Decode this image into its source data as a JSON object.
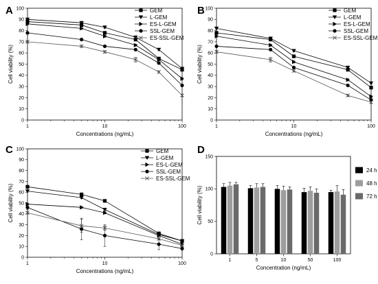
{
  "chart_data": [
    {
      "panel": "A",
      "type": "line",
      "xscale": "log",
      "xlabel": "Concentrations (ng/mL)",
      "ylabel": "Cell viability (%)",
      "xlim": [
        1,
        100
      ],
      "ylim": [
        0,
        100
      ],
      "x_ticks": [
        1,
        10,
        100
      ],
      "y_ticks": [
        0,
        10,
        20,
        30,
        40,
        50,
        60,
        70,
        80,
        90,
        100
      ],
      "x": [
        1,
        5,
        10,
        25,
        50,
        100
      ],
      "legend_position": "top-right",
      "series": [
        {
          "name": "GEM",
          "marker": "square",
          "values": [
            88,
            85,
            78,
            72,
            55,
            45
          ],
          "errors": [
            1,
            1,
            1,
            1,
            1,
            1
          ]
        },
        {
          "name": "L-GEM",
          "marker": "triangle-down",
          "values": [
            90,
            87,
            83,
            74,
            63,
            46
          ],
          "errors": [
            1,
            1,
            1,
            1,
            1,
            1
          ]
        },
        {
          "name": "ES-L-GEM",
          "marker": "triangle-right",
          "values": [
            86,
            82,
            75,
            67,
            54,
            37
          ],
          "errors": [
            1,
            1,
            1,
            1,
            1,
            1
          ]
        },
        {
          "name": "SSL-GEM",
          "marker": "circle",
          "values": [
            78,
            72,
            66,
            63,
            51,
            31
          ],
          "errors": [
            1,
            1,
            1,
            1,
            1,
            1
          ]
        },
        {
          "name": "ES-SSL-GEM",
          "marker": "cross",
          "values": [
            70,
            66,
            61,
            54,
            43,
            22
          ],
          "errors": [
            1,
            1,
            1,
            2,
            1,
            1
          ]
        }
      ]
    },
    {
      "panel": "B",
      "type": "line",
      "xscale": "log",
      "xlabel": "Concentrations (ng/mL)",
      "ylabel": "Cell viability (%)",
      "xlim": [
        1,
        100
      ],
      "ylim": [
        0,
        100
      ],
      "x_ticks": [
        1,
        10,
        100
      ],
      "y_ticks": [
        0,
        10,
        20,
        30,
        40,
        50,
        60,
        70,
        80,
        90,
        100
      ],
      "x": [
        1,
        5,
        10,
        50,
        100
      ],
      "legend_position": "top-right",
      "series": [
        {
          "name": "GEM",
          "marker": "square",
          "values": [
            78,
            72,
            57,
            45,
            29
          ],
          "errors": [
            1,
            1,
            1,
            1,
            1
          ]
        },
        {
          "name": "L-GEM",
          "marker": "triangle-down",
          "values": [
            82,
            73,
            62,
            47,
            33
          ],
          "errors": [
            1,
            1,
            1,
            1,
            1
          ]
        },
        {
          "name": "ES-L-GEM",
          "marker": "triangle-right",
          "values": [
            75,
            67,
            52,
            36,
            21
          ],
          "errors": [
            1,
            1,
            1,
            1,
            1
          ]
        },
        {
          "name": "SSL-GEM",
          "marker": "circle",
          "values": [
            66,
            63,
            47,
            31,
            18
          ],
          "errors": [
            1,
            1,
            1,
            1,
            1
          ]
        },
        {
          "name": "ES-SSL-GEM",
          "marker": "cross",
          "values": [
            61,
            54,
            44,
            22,
            16
          ],
          "errors": [
            1,
            2,
            1,
            1,
            1
          ]
        }
      ]
    },
    {
      "panel": "C",
      "type": "line",
      "xscale": "log",
      "xlabel": "Concentrations (ng/mL)",
      "ylabel": "Cell viability (%)",
      "xlim": [
        1,
        100
      ],
      "ylim": [
        0,
        100
      ],
      "x_ticks": [
        1,
        10,
        100
      ],
      "y_ticks": [
        0,
        10,
        20,
        30,
        40,
        50,
        60,
        70,
        80,
        90,
        100
      ],
      "x": [
        1,
        5,
        10,
        50,
        100
      ],
      "legend_position": "top-right",
      "series": [
        {
          "name": "GEM",
          "marker": "square",
          "values": [
            65,
            58,
            52,
            22,
            15
          ],
          "errors": [
            1,
            1,
            1,
            1,
            1
          ]
        },
        {
          "name": "L-GEM",
          "marker": "triangle-down",
          "values": [
            61,
            55,
            44,
            21,
            15
          ],
          "errors": [
            1,
            1,
            1,
            1,
            1
          ]
        },
        {
          "name": "ES-L-GEM",
          "marker": "triangle-right",
          "values": [
            49,
            46,
            41,
            20,
            12
          ],
          "errors": [
            1,
            1,
            1,
            1,
            1
          ]
        },
        {
          "name": "SSL-GEM",
          "marker": "circle",
          "values": [
            46,
            26,
            20,
            12,
            8
          ],
          "errors": [
            2,
            10,
            10,
            5,
            1
          ]
        },
        {
          "name": "ES-SSL-GEM",
          "marker": "cross",
          "values": [
            41,
            29,
            27,
            17,
            11
          ],
          "errors": [
            1,
            6,
            2,
            1,
            1
          ]
        }
      ]
    },
    {
      "panel": "D",
      "type": "bar",
      "xlabel": "Concentration (ng/mL)",
      "ylabel": "Cell viability (%)",
      "ylim": [
        0,
        150
      ],
      "y_ticks": [
        0,
        50,
        100,
        150
      ],
      "categories": [
        "1",
        "5",
        "10",
        "50",
        "100"
      ],
      "legend_position": "right",
      "series": [
        {
          "name": "24 h",
          "color": "#000000",
          "values": [
            103,
            101,
            100,
            95,
            95
          ],
          "errors": [
            5,
            4,
            5,
            6,
            3
          ]
        },
        {
          "name": "48 h",
          "color": "#9e9e9e",
          "values": [
            105,
            102,
            98,
            97,
            96
          ],
          "errors": [
            5,
            6,
            6,
            6,
            9
          ]
        },
        {
          "name": "72 h",
          "color": "#6a6a6a",
          "values": [
            107,
            103,
            99,
            94,
            91
          ],
          "errors": [
            3,
            5,
            4,
            6,
            8
          ]
        }
      ]
    }
  ]
}
